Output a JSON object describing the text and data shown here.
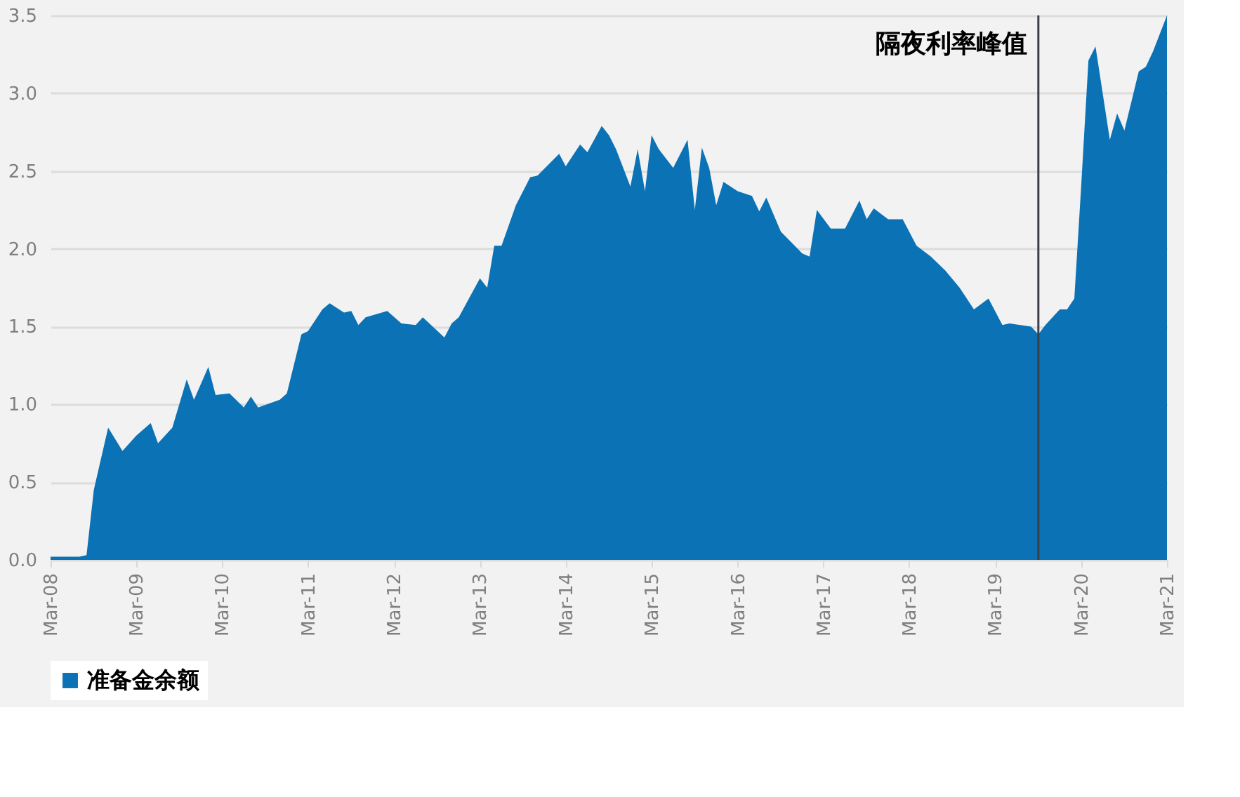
{
  "chart_data": {
    "type": "area",
    "x": [
      "2008-03",
      "2008-07",
      "2008-08",
      "2008-09",
      "2008-11",
      "2009-01",
      "2009-03",
      "2009-05",
      "2009-06",
      "2009-08",
      "2009-10",
      "2009-11",
      "2010-01",
      "2010-02",
      "2010-04",
      "2010-06",
      "2010-07",
      "2010-08",
      "2010-11",
      "2010-12",
      "2011-02",
      "2011-03",
      "2011-05",
      "2011-06",
      "2011-08",
      "2011-09",
      "2011-10",
      "2011-11",
      "2012-02",
      "2012-04",
      "2012-06",
      "2012-07",
      "2012-10",
      "2012-11",
      "2012-12",
      "2013-03",
      "2013-04",
      "2013-05",
      "2013-06",
      "2013-08",
      "2013-10",
      "2013-11",
      "2014-02",
      "2014-03",
      "2014-05",
      "2014-06",
      "2014-08",
      "2014-09",
      "2014-10",
      "2014-12",
      "2015-01",
      "2015-02",
      "2015-03",
      "2015-04",
      "2015-06",
      "2015-08",
      "2015-09",
      "2015-10",
      "2015-11",
      "2015-12",
      "2016-01",
      "2016-03",
      "2016-05",
      "2016-06",
      "2016-07",
      "2016-09",
      "2016-12",
      "2017-01",
      "2017-02",
      "2017-04",
      "2017-06",
      "2017-08",
      "2017-09",
      "2017-10",
      "2017-12",
      "2018-02",
      "2018-04",
      "2018-06",
      "2018-08",
      "2018-10",
      "2018-12",
      "2019-02",
      "2019-04",
      "2019-05",
      "2019-08",
      "2019-09",
      "2019-10",
      "2019-12",
      "2020-01",
      "2020-02",
      "2020-03",
      "2020-04",
      "2020-05",
      "2020-07",
      "2020-08",
      "2020-09",
      "2020-11",
      "2020-12",
      "2021-01",
      "2021-03"
    ],
    "series": [
      {
        "name": "准备金余额",
        "color": "#0a72b5",
        "values": [
          0.02,
          0.02,
          0.03,
          0.45,
          0.85,
          0.7,
          0.8,
          0.88,
          0.75,
          0.85,
          1.16,
          1.03,
          1.24,
          1.06,
          1.07,
          0.98,
          1.05,
          0.98,
          1.03,
          1.07,
          1.45,
          1.47,
          1.61,
          1.65,
          1.59,
          1.6,
          1.51,
          1.56,
          1.6,
          1.52,
          1.51,
          1.56,
          1.43,
          1.52,
          1.56,
          1.81,
          1.75,
          2.02,
          2.02,
          2.28,
          2.46,
          2.47,
          2.61,
          2.53,
          2.67,
          2.62,
          2.79,
          2.73,
          2.64,
          2.4,
          2.64,
          2.37,
          2.73,
          2.64,
          2.52,
          2.7,
          2.25,
          2.65,
          2.52,
          2.28,
          2.43,
          2.37,
          2.34,
          2.24,
          2.33,
          2.11,
          1.97,
          1.95,
          2.25,
          2.13,
          2.13,
          2.31,
          2.19,
          2.26,
          2.19,
          2.19,
          2.02,
          1.95,
          1.86,
          1.75,
          1.61,
          1.68,
          1.51,
          1.52,
          1.5,
          1.45,
          1.51,
          1.61,
          1.61,
          1.68,
          2.4,
          3.21,
          3.3,
          2.7,
          2.87,
          2.76,
          3.14,
          3.17,
          3.27,
          3.5
        ]
      }
    ],
    "xlim": [
      "2008-03",
      "2021-03"
    ],
    "xticks": [
      {
        "value": "2008-03",
        "label": "Mar-08"
      },
      {
        "value": "2009-03",
        "label": "Mar-09"
      },
      {
        "value": "2010-03",
        "label": "Mar-10"
      },
      {
        "value": "2011-03",
        "label": "Mar-11"
      },
      {
        "value": "2012-03",
        "label": "Mar-12"
      },
      {
        "value": "2013-03",
        "label": "Mar-13"
      },
      {
        "value": "2014-03",
        "label": "Mar-14"
      },
      {
        "value": "2015-03",
        "label": "Mar-15"
      },
      {
        "value": "2016-03",
        "label": "Mar-16"
      },
      {
        "value": "2017-03",
        "label": "Mar-17"
      },
      {
        "value": "2018-03",
        "label": "Mar-18"
      },
      {
        "value": "2019-03",
        "label": "Mar-19"
      },
      {
        "value": "2020-03",
        "label": "Mar-20"
      },
      {
        "value": "2021-03",
        "label": "Mar-21"
      }
    ],
    "ylim": [
      0,
      3.5
    ],
    "yticks": [
      {
        "value": 0,
        "label": "0.0"
      },
      {
        "value": 0.5,
        "label": "0.5"
      },
      {
        "value": 1,
        "label": "1.0"
      },
      {
        "value": 1.5,
        "label": "1.5"
      },
      {
        "value": 2,
        "label": "2.0"
      },
      {
        "value": 2.5,
        "label": "2.5"
      },
      {
        "value": 3,
        "label": "3.0"
      },
      {
        "value": 3.5,
        "label": "3.5"
      }
    ],
    "ref_lines": [
      {
        "axis": "x",
        "value": "2019-09",
        "label": "隔夜利率峰值",
        "color": "#3a3f4a"
      }
    ],
    "grid": "y",
    "legend": "bottom"
  }
}
